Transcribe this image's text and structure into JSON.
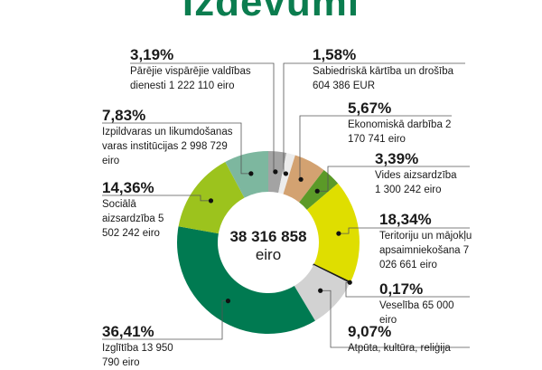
{
  "title": "Izdevumi",
  "chart_data": {
    "type": "pie",
    "donut": true,
    "total": "38 316 858",
    "total_unit": "eiro",
    "slices": [
      {
        "pct": "3,19%",
        "value": 3.19,
        "label": "Pārējie vispārējie valdības dienesti 1 222 110 eiro",
        "color": "#a3a3a3"
      },
      {
        "pct": "1,58%",
        "value": 1.58,
        "label": "Sabiedriskā kārtība un drošība 604 386 EUR",
        "color": "#ececec"
      },
      {
        "pct": "5,67%",
        "value": 5.67,
        "label": "Ekonomiskā darbība 2 170 741 eiro",
        "color": "#d3a271"
      },
      {
        "pct": "3,39%",
        "value": 3.39,
        "label": "Vides aizsardzība 1 300 242 eiro",
        "color": "#5b9a28"
      },
      {
        "pct": "18,34%",
        "value": 18.34,
        "label": "Teritoriju un mājokļu apsaimniekošana 7 026 661 eiro",
        "color": "#dfde00"
      },
      {
        "pct": "0,17%",
        "value": 0.17,
        "label": "Veselība 65 000 eiro",
        "color": "#1a1a1a"
      },
      {
        "pct": "9,07%",
        "value": 9.07,
        "label": "Atpūta, kultūra, reliģija",
        "color": "#d2d2d2"
      },
      {
        "pct": "36,41%",
        "value": 36.41,
        "label": "Izglītība 13 950 790 eiro",
        "color": "#007a51"
      },
      {
        "pct": "14,36%",
        "value": 14.36,
        "label": "Sociālā aizsardzība 5 502 242 eiro",
        "color": "#9cc31d"
      },
      {
        "pct": "7,83%",
        "value": 7.83,
        "label": "Izpildvaras un likumdošanas varas institūcijas 2 998 729 eiro",
        "color": "#7db79f"
      }
    ]
  }
}
